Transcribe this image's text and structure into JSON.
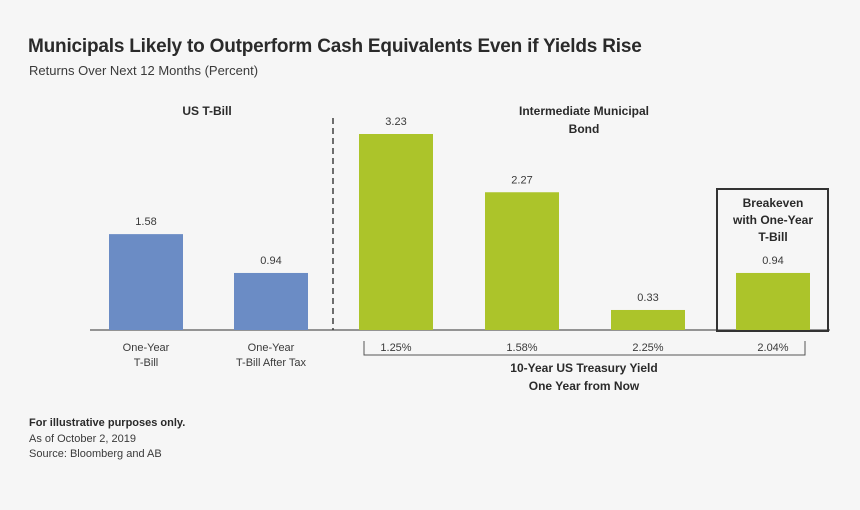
{
  "chart_data": {
    "type": "bar",
    "title": "Municipals Likely to Outperform Cash Equivalents Even if Yields Rise",
    "subtitle": "Returns Over Next 12 Months (Percent)",
    "ylim": [
      0,
      3.23
    ],
    "groups": [
      {
        "name": "US T-Bill",
        "color": "#6b8cc5"
      },
      {
        "name": "Intermediate Municipal Bond",
        "color": "#acc42a"
      }
    ],
    "series_group_titles": {
      "tbill": "US T-Bill",
      "muni_line1": "Intermediate Municipal",
      "muni_line2": "Bond"
    },
    "bars": [
      {
        "group": "US T-Bill",
        "label_line1": "One-Year",
        "label_line2": "T-Bill",
        "value": 1.58,
        "value_label": "1.58"
      },
      {
        "group": "US T-Bill",
        "label_line1": "One-Year",
        "label_line2": "T-Bill After Tax",
        "value": 0.94,
        "value_label": "0.94"
      },
      {
        "group": "Intermediate Municipal Bond",
        "label_line1": "1.25%",
        "value": 3.23,
        "value_label": "3.23"
      },
      {
        "group": "Intermediate Municipal Bond",
        "label_line1": "1.58%",
        "value": 2.27,
        "value_label": "2.27"
      },
      {
        "group": "Intermediate Municipal Bond",
        "label_line1": "2.25%",
        "value": 0.33,
        "value_label": "0.33"
      },
      {
        "group": "Intermediate Municipal Bond",
        "label_line1": "2.04%",
        "value": 0.94,
        "value_label": "0.94"
      }
    ],
    "breakeven_box": [
      "Breakeven",
      "with One-Year",
      "T-Bill"
    ],
    "xaxis_bracket_label": [
      "10-Year US Treasury Yield",
      "One Year from Now"
    ]
  },
  "footnotes": {
    "note": "For illustrative purposes only.",
    "date": "As of October 2, 2019",
    "source": "Source: Bloomberg and AB"
  },
  "colors": {
    "tbill": "#6b8cc5",
    "muni": "#acc42a",
    "text": "#2a2a2a"
  }
}
